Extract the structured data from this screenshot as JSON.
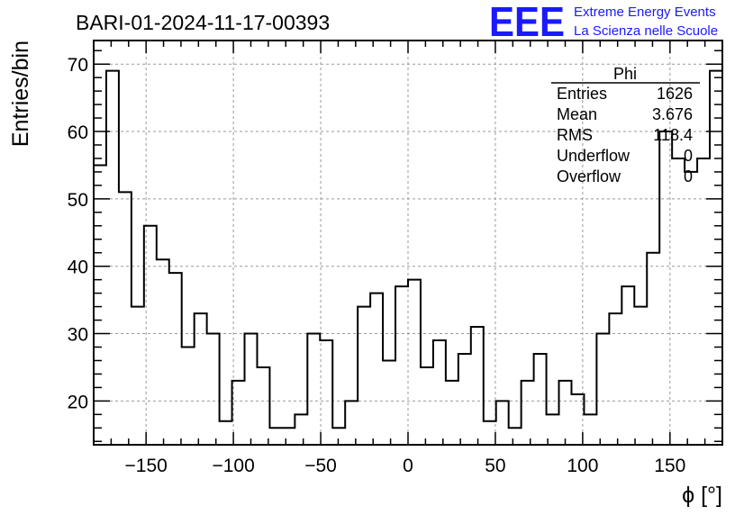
{
  "chart_data": {
    "type": "bar",
    "title": "BARI-01-2024-11-17-00393",
    "xlabel": "ϕ [°]",
    "ylabel": "Entries/bin",
    "xlim": [
      -180,
      180
    ],
    "ylim": [
      13.5,
      73.5
    ],
    "bin_width": 7.2,
    "x_ticks": [
      -150,
      -100,
      -50,
      0,
      50,
      100,
      150
    ],
    "y_ticks": [
      20,
      30,
      40,
      50,
      60,
      70
    ],
    "grid": true,
    "values": [
      55,
      69,
      51,
      34,
      46,
      41,
      39,
      28,
      33,
      30,
      17,
      23,
      30,
      25,
      16,
      16,
      18,
      30,
      29,
      16,
      20,
      34,
      36,
      26,
      37,
      38,
      25,
      29,
      23,
      27,
      31,
      17,
      20,
      16,
      23,
      27,
      18,
      23,
      21,
      18,
      30,
      33,
      37,
      34,
      42,
      60,
      56,
      54,
      56,
      69
    ]
  },
  "stats": {
    "name": "Phi",
    "rows": [
      {
        "label": "Entries",
        "value": "1626"
      },
      {
        "label": "Mean",
        "value": "3.676"
      },
      {
        "label": "RMS",
        "value": "118.4"
      },
      {
        "label": "Underflow",
        "value": "0"
      },
      {
        "label": "Overflow",
        "value": "0"
      }
    ]
  },
  "logo": {
    "mark": "EEE",
    "line1": "Extreme Energy Events",
    "line2": "La Scienza nelle Scuole",
    "color": "#1a1aff"
  }
}
